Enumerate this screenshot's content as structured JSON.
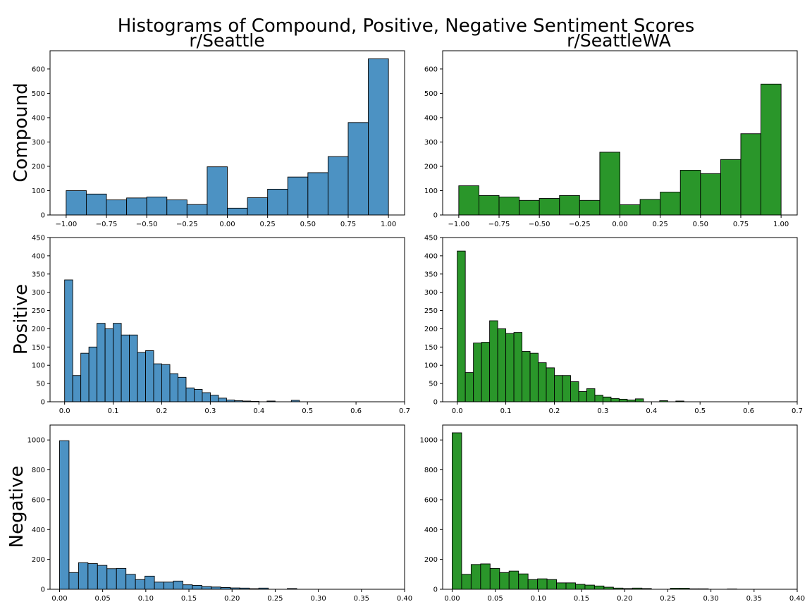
{
  "title": "Histograms of Compound, Positive, Negative Sentiment Scores",
  "columns": [
    "r/Seattle",
    "r/SeattleWA"
  ],
  "rows": [
    "Compound",
    "Positive",
    "Negative"
  ],
  "colors": {
    "r/Seattle": "#4c92c3",
    "r/SeattleWA": "#2a962a"
  },
  "chart_data": [
    {
      "type": "bar",
      "name": "compound-seattle",
      "subreddit": "r/Seattle",
      "metric": "Compound",
      "color": "#4c92c3",
      "title": "r/Seattle",
      "xlabel": "",
      "ylabel": "Compound",
      "bin_start": -1.0,
      "bin_width": 0.125,
      "values": [
        100,
        86,
        62,
        70,
        74,
        62,
        43,
        198,
        28,
        71,
        106,
        156,
        174,
        240,
        380,
        642
      ],
      "xlim": [
        -1.1,
        1.1
      ],
      "ylim": [
        0,
        675
      ],
      "xticks": [
        -1.0,
        -0.75,
        -0.5,
        -0.25,
        0.0,
        0.25,
        0.5,
        0.75,
        1.0
      ],
      "xtick_labels": [
        "−1.00",
        "−0.75",
        "−0.50",
        "−0.25",
        "0.00",
        "0.25",
        "0.50",
        "0.75",
        "1.00"
      ],
      "yticks": [
        0,
        100,
        200,
        300,
        400,
        500,
        600
      ],
      "ytick_labels": [
        "0",
        "100",
        "200",
        "300",
        "400",
        "500",
        "600"
      ]
    },
    {
      "type": "bar",
      "name": "compound-seattlewa",
      "subreddit": "r/SeattleWA",
      "metric": "Compound",
      "color": "#2a962a",
      "title": "r/SeattleWA",
      "xlabel": "",
      "ylabel": "",
      "bin_start": -1.0,
      "bin_width": 0.125,
      "values": [
        120,
        80,
        74,
        60,
        68,
        80,
        60,
        258,
        42,
        64,
        94,
        184,
        170,
        228,
        334,
        538
      ],
      "xlim": [
        -1.1,
        1.1
      ],
      "ylim": [
        0,
        675
      ],
      "xticks": [
        -1.0,
        -0.75,
        -0.5,
        -0.25,
        0.0,
        0.25,
        0.5,
        0.75,
        1.0
      ],
      "xtick_labels": [
        "−1.00",
        "−0.75",
        "−0.50",
        "−0.25",
        "0.00",
        "0.25",
        "0.50",
        "0.75",
        "1.00"
      ],
      "yticks": [
        0,
        100,
        200,
        300,
        400,
        500,
        600
      ],
      "ytick_labels": [
        "0",
        "100",
        "200",
        "300",
        "400",
        "500",
        "600"
      ]
    },
    {
      "type": "bar",
      "name": "positive-seattle",
      "subreddit": "r/Seattle",
      "metric": "Positive",
      "color": "#4c92c3",
      "title": "",
      "xlabel": "",
      "ylabel": "Positive",
      "bin_start": 0.0,
      "bin_width": 0.01667,
      "values": [
        334,
        72,
        133,
        150,
        215,
        200,
        215,
        183,
        183,
        135,
        140,
        104,
        102,
        77,
        67,
        38,
        34,
        25,
        18,
        10,
        5,
        3,
        2,
        1,
        0,
        2,
        0,
        0,
        4
      ],
      "xlim": [
        -0.03,
        0.7
      ],
      "ylim": [
        0,
        450
      ],
      "xticks": [
        0.0,
        0.1,
        0.2,
        0.3,
        0.4,
        0.5,
        0.6,
        0.7
      ],
      "xtick_labels": [
        "0.0",
        "0.1",
        "0.2",
        "0.3",
        "0.4",
        "0.5",
        "0.6",
        "0.7"
      ],
      "yticks": [
        0,
        50,
        100,
        150,
        200,
        250,
        300,
        350,
        400,
        450
      ],
      "ytick_labels": [
        "0",
        "50",
        "100",
        "150",
        "200",
        "250",
        "300",
        "350",
        "400",
        "450"
      ]
    },
    {
      "type": "bar",
      "name": "positive-seattlewa",
      "subreddit": "r/SeattleWA",
      "metric": "Positive",
      "color": "#2a962a",
      "title": "",
      "xlabel": "",
      "ylabel": "",
      "bin_start": 0.0,
      "bin_width": 0.01667,
      "values": [
        413,
        80,
        161,
        163,
        222,
        200,
        187,
        190,
        138,
        133,
        107,
        93,
        72,
        72,
        55,
        28,
        36,
        18,
        13,
        9,
        7,
        5,
        8,
        0,
        0,
        3,
        0,
        2
      ],
      "xlim": [
        -0.03,
        0.7
      ],
      "ylim": [
        0,
        450
      ],
      "xticks": [
        0.0,
        0.1,
        0.2,
        0.3,
        0.4,
        0.5,
        0.6,
        0.7
      ],
      "xtick_labels": [
        "0.0",
        "0.1",
        "0.2",
        "0.3",
        "0.4",
        "0.5",
        "0.6",
        "0.7"
      ],
      "yticks": [
        0,
        50,
        100,
        150,
        200,
        250,
        300,
        350,
        400,
        450
      ],
      "ytick_labels": [
        "0",
        "50",
        "100",
        "150",
        "200",
        "250",
        "300",
        "350",
        "400",
        "450"
      ]
    },
    {
      "type": "bar",
      "name": "negative-seattle",
      "subreddit": "r/Seattle",
      "metric": "Negative",
      "color": "#4c92c3",
      "title": "",
      "xlabel": "",
      "ylabel": "Negative",
      "bin_start": 0.0,
      "bin_width": 0.011,
      "values": [
        995,
        112,
        178,
        172,
        160,
        138,
        140,
        100,
        65,
        88,
        48,
        48,
        55,
        30,
        26,
        18,
        15,
        12,
        9,
        8,
        4,
        8,
        0,
        0,
        5
      ],
      "xlim": [
        -0.011,
        0.4
      ],
      "ylim": [
        0,
        1100
      ],
      "xticks": [
        0.0,
        0.05,
        0.1,
        0.15,
        0.2,
        0.25,
        0.3,
        0.35,
        0.4
      ],
      "xtick_labels": [
        "0.00",
        "0.05",
        "0.10",
        "0.15",
        "0.20",
        "0.25",
        "0.30",
        "0.35",
        "0.40"
      ],
      "yticks": [
        0,
        200,
        400,
        600,
        800,
        1000
      ],
      "ytick_labels": [
        "0",
        "200",
        "400",
        "600",
        "800",
        "1000"
      ]
    },
    {
      "type": "bar",
      "name": "negative-seattlewa",
      "subreddit": "r/SeattleWA",
      "metric": "Negative",
      "color": "#2a962a",
      "title": "",
      "xlabel": "",
      "ylabel": "",
      "bin_start": 0.0,
      "bin_width": 0.011,
      "values": [
        1048,
        100,
        166,
        170,
        140,
        112,
        122,
        103,
        65,
        70,
        65,
        43,
        43,
        33,
        28,
        22,
        14,
        8,
        5,
        8,
        5,
        0,
        0,
        7,
        7,
        3,
        3,
        0,
        0,
        2
      ],
      "xlim": [
        -0.011,
        0.4
      ],
      "ylim": [
        0,
        1100
      ],
      "xticks": [
        0.0,
        0.05,
        0.1,
        0.15,
        0.2,
        0.25,
        0.3,
        0.35,
        0.4
      ],
      "xtick_labels": [
        "0.00",
        "0.05",
        "0.10",
        "0.15",
        "0.20",
        "0.25",
        "0.30",
        "0.35",
        "0.40"
      ],
      "yticks": [
        0,
        200,
        400,
        600,
        800,
        1000
      ],
      "ytick_labels": [
        "0",
        "200",
        "400",
        "600",
        "800",
        "1000"
      ]
    }
  ]
}
